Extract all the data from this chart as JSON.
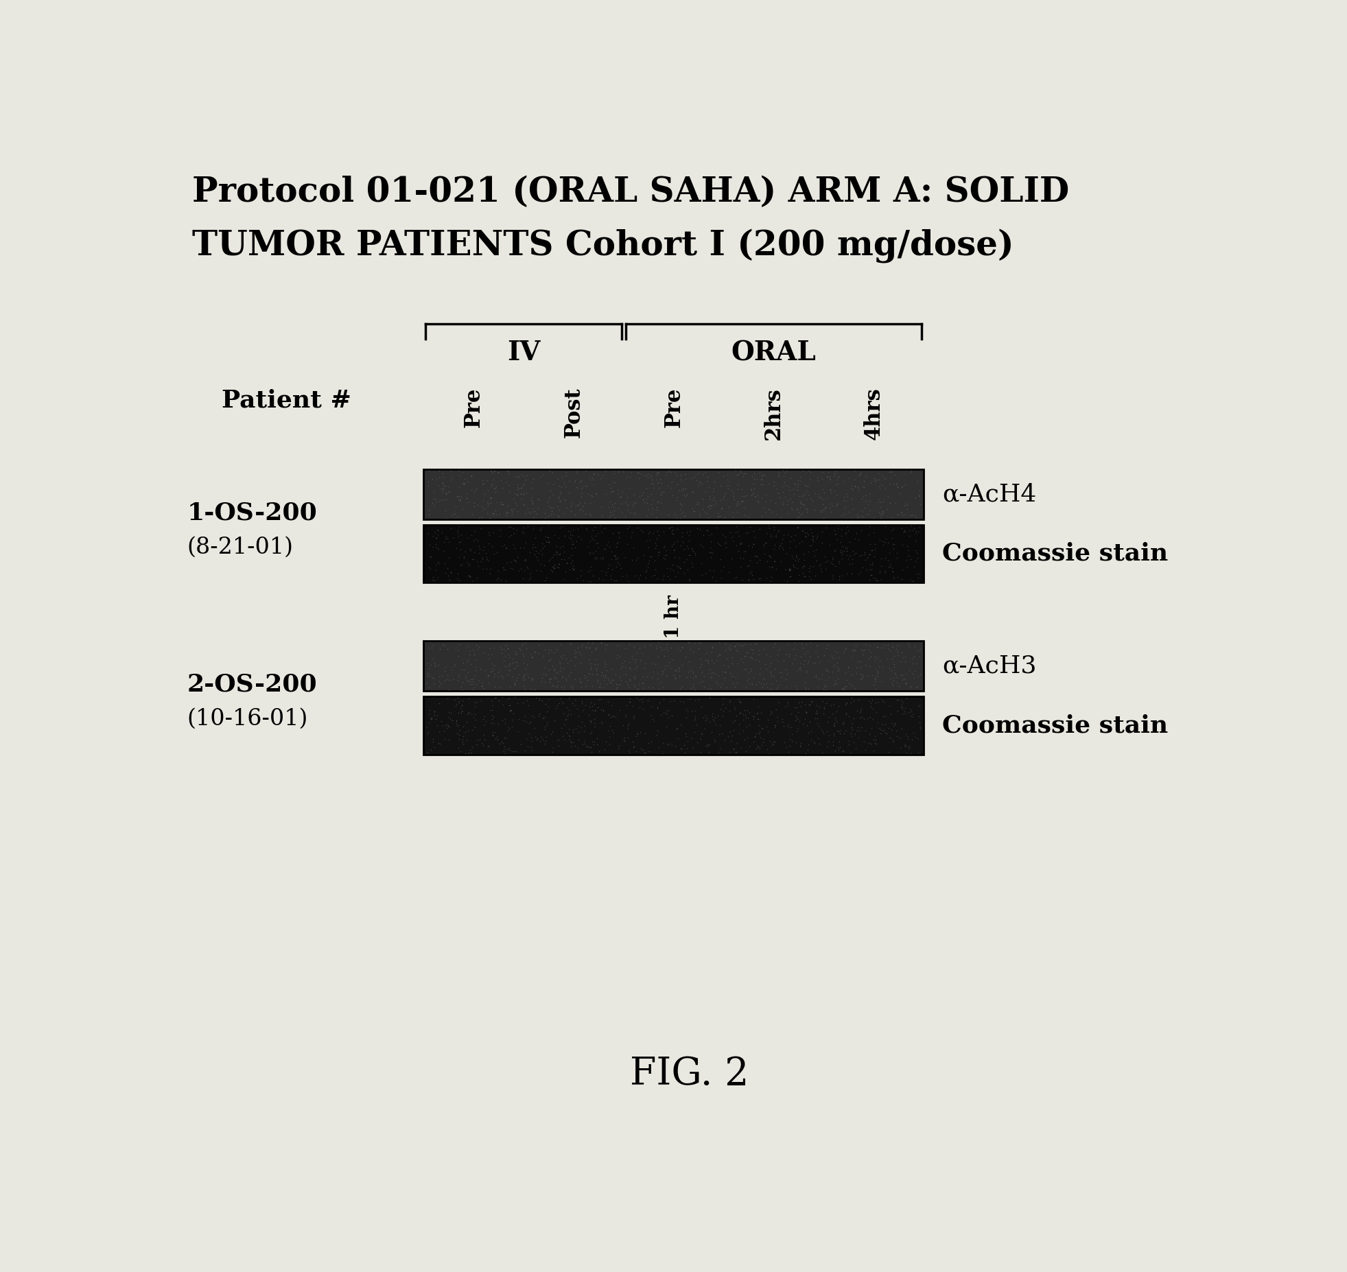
{
  "title_line1": "Protocol 01-021 (ORAL SAHA) ARM A: SOLID",
  "title_line2": "TUMOR PATIENTS Cohort I (200 mg/dose)",
  "patient_label": "Patient #",
  "iv_label": "IV",
  "oral_label": "ORAL",
  "col_labels": [
    "Pre",
    "Post",
    "Pre",
    "2hrs",
    "4hrs"
  ],
  "patient1_id": "1-OS-200",
  "patient1_date": "(8-21-01)",
  "patient2_id": "2-OS-200",
  "patient2_date": "(10-16-01)",
  "band_labels": [
    "α-AcH4",
    "Coomassie stain",
    "α-AcH3",
    "Coomassie stain"
  ],
  "one_hr_label": "1 hr",
  "fig_label": "FIG. 2",
  "bg_color": "#e8e8e0",
  "band1_face": "#303030",
  "band2_face": "#0a0a0a",
  "band3_face": "#2e2e2e",
  "band4_face": "#121212",
  "title_fontsize": 36,
  "label_fontsize": 26,
  "bracket_label_fontsize": 28,
  "col_label_fontsize": 22,
  "band_label_fontsize": 26,
  "patient_id_fontsize": 26,
  "fig_label_fontsize": 40
}
